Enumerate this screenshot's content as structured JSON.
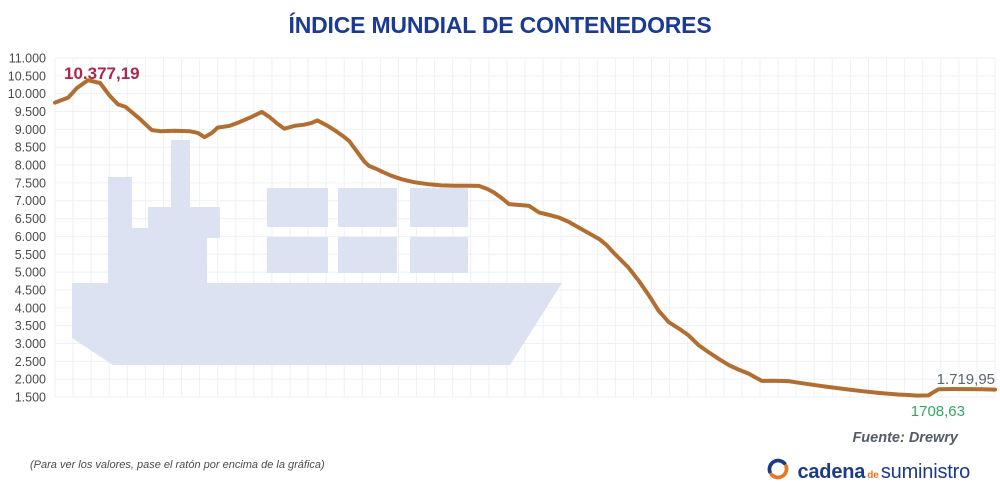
{
  "title": "ÍNDICE MUNDIAL DE CONTENEDORES",
  "chart_data": {
    "type": "line",
    "title": "ÍNDICE MUNDIAL DE CONTENEDORES",
    "grid": true,
    "x_axis": {
      "tick_labels_visible": false
    },
    "y_axis": {
      "min": 1500,
      "max": 11000,
      "step": 500,
      "tick_labels": [
        "11.000",
        "10.500",
        "10.000",
        "9.500",
        "9.000",
        "8.500",
        "8.000",
        "7.500",
        "7.000",
        "6.500",
        "6.000",
        "5.500",
        "5.000",
        "4.500",
        "4.000",
        "3.500",
        "3.000",
        "2.500",
        "2.000",
        "1.500"
      ]
    },
    "series": [
      {
        "name": "Índice mundial de contenedores",
        "color": "#b26e30",
        "points": [
          [
            0,
            9750
          ],
          [
            1.4,
            9890
          ],
          [
            2.3,
            10150
          ],
          [
            3.5,
            10377.19
          ],
          [
            4.8,
            10300
          ],
          [
            5.8,
            9950
          ],
          [
            6.7,
            9700
          ],
          [
            7.5,
            9630
          ],
          [
            9.0,
            9300
          ],
          [
            10.3,
            8980
          ],
          [
            11.2,
            8950
          ],
          [
            12.7,
            8960
          ],
          [
            14.3,
            8950
          ],
          [
            15.2,
            8900
          ],
          [
            15.9,
            8780
          ],
          [
            16.7,
            8900
          ],
          [
            17.3,
            9050
          ],
          [
            18.6,
            9100
          ],
          [
            19.6,
            9200
          ],
          [
            20.9,
            9350
          ],
          [
            22.0,
            9490
          ],
          [
            22.8,
            9350
          ],
          [
            23.7,
            9150
          ],
          [
            24.4,
            9020
          ],
          [
            25.5,
            9100
          ],
          [
            26.5,
            9130
          ],
          [
            27.3,
            9180
          ],
          [
            27.9,
            9250
          ],
          [
            29.0,
            9100
          ],
          [
            29.9,
            8950
          ],
          [
            30.7,
            8800
          ],
          [
            31.3,
            8670
          ],
          [
            32.2,
            8350
          ],
          [
            32.9,
            8100
          ],
          [
            33.4,
            7975
          ],
          [
            34.2,
            7890
          ],
          [
            34.8,
            7815
          ],
          [
            35.8,
            7700
          ],
          [
            36.9,
            7600
          ],
          [
            38.2,
            7520
          ],
          [
            39.8,
            7460
          ],
          [
            41.1,
            7430
          ],
          [
            42.5,
            7420
          ],
          [
            43.8,
            7420
          ],
          [
            45.1,
            7415
          ],
          [
            46.0,
            7330
          ],
          [
            46.7,
            7230
          ],
          [
            47.6,
            7060
          ],
          [
            48.3,
            6905
          ],
          [
            49.4,
            6880
          ],
          [
            50.4,
            6860
          ],
          [
            51.5,
            6670
          ],
          [
            52.6,
            6600
          ],
          [
            53.6,
            6530
          ],
          [
            54.7,
            6400
          ],
          [
            55.7,
            6250
          ],
          [
            56.8,
            6090
          ],
          [
            57.9,
            5925
          ],
          [
            58.7,
            5750
          ],
          [
            59.4,
            5550
          ],
          [
            60.2,
            5340
          ],
          [
            61.0,
            5130
          ],
          [
            62.1,
            4760
          ],
          [
            63.2,
            4340
          ],
          [
            64.2,
            3920
          ],
          [
            65.3,
            3595
          ],
          [
            66.4,
            3410
          ],
          [
            67.4,
            3225
          ],
          [
            68.5,
            2945
          ],
          [
            69.5,
            2760
          ],
          [
            70.6,
            2570
          ],
          [
            71.7,
            2390
          ],
          [
            72.7,
            2270
          ],
          [
            73.8,
            2155
          ],
          [
            74.5,
            2050
          ],
          [
            75.2,
            1950
          ],
          [
            76.4,
            1955
          ],
          [
            78.0,
            1945
          ],
          [
            79.1,
            1900
          ],
          [
            80.9,
            1830
          ],
          [
            82.3,
            1780
          ],
          [
            84.4,
            1710
          ],
          [
            86.0,
            1660
          ],
          [
            87.6,
            1615
          ],
          [
            89.7,
            1570
          ],
          [
            90.8,
            1555
          ],
          [
            91.8,
            1540
          ],
          [
            92.9,
            1545
          ],
          [
            94.0,
            1719.95
          ],
          [
            95.5,
            1725
          ],
          [
            97.1,
            1720
          ],
          [
            98.7,
            1715
          ],
          [
            100,
            1708.63
          ]
        ]
      }
    ],
    "annotations": {
      "peak": {
        "label": "10.377,19",
        "value": 10377.19,
        "color": "#a8294d"
      },
      "end_gray": {
        "label": "1.719,95",
        "value": 1719.95,
        "color": "#5a6472"
      },
      "end_green": {
        "label": "1708,63",
        "value": 1708.63,
        "color": "#2fa863"
      }
    },
    "legend": {
      "visible": false
    }
  },
  "footer": {
    "source": "Fuente: Drewry",
    "hint": "(Para ver los valores, pase el ratón por encima de la gráfica)"
  },
  "logo": {
    "part1": "cadena",
    "part2": "de",
    "part3": "suministro"
  },
  "colors": {
    "title": "#1a3a96",
    "line": "#b26e30",
    "watermark": "#dce2f2",
    "grid": "#eef0f4",
    "axis_labels": "#4a4a4a",
    "logo_blue": "#1b3a8c",
    "logo_orange": "#e87722"
  }
}
